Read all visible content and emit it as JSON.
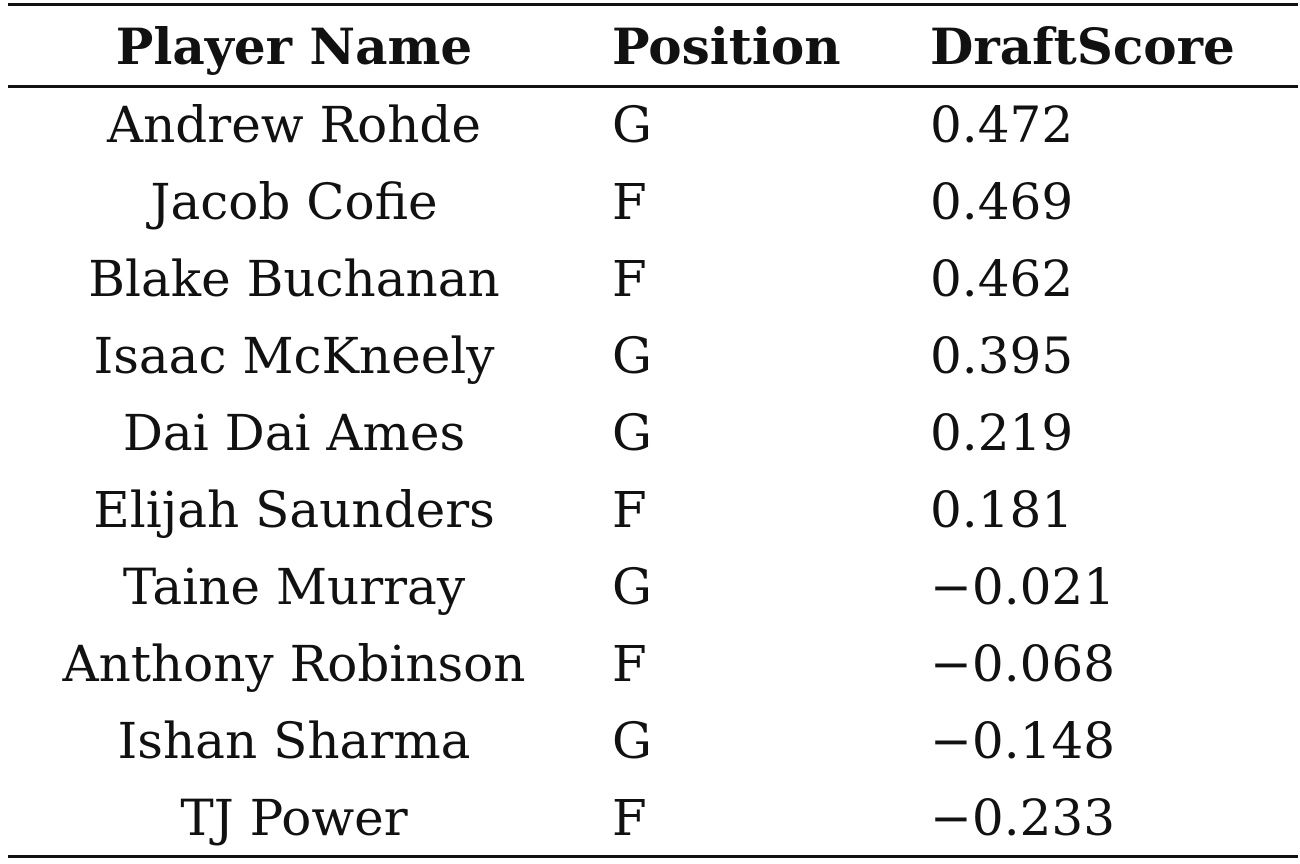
{
  "table": {
    "headers": [
      "Player Name",
      "Position",
      "DraftScore"
    ],
    "rows": [
      [
        "Andrew Rohde",
        "G",
        "0.472"
      ],
      [
        "Jacob Cofie",
        "F",
        "0.469"
      ],
      [
        "Blake Buchanan",
        "F",
        "0.462"
      ],
      [
        "Isaac McKneely",
        "G",
        "0.395"
      ],
      [
        "Dai Dai Ames",
        "G",
        "0.219"
      ],
      [
        "Elijah Saunders",
        "F",
        "0.181"
      ],
      [
        "Taine Murray",
        "G",
        "−0.021"
      ],
      [
        "Anthony Robinson",
        "F",
        "−0.068"
      ],
      [
        "Ishan Sharma",
        "G",
        "−0.148"
      ],
      [
        "TJ Power",
        "F",
        "−0.233"
      ]
    ]
  }
}
